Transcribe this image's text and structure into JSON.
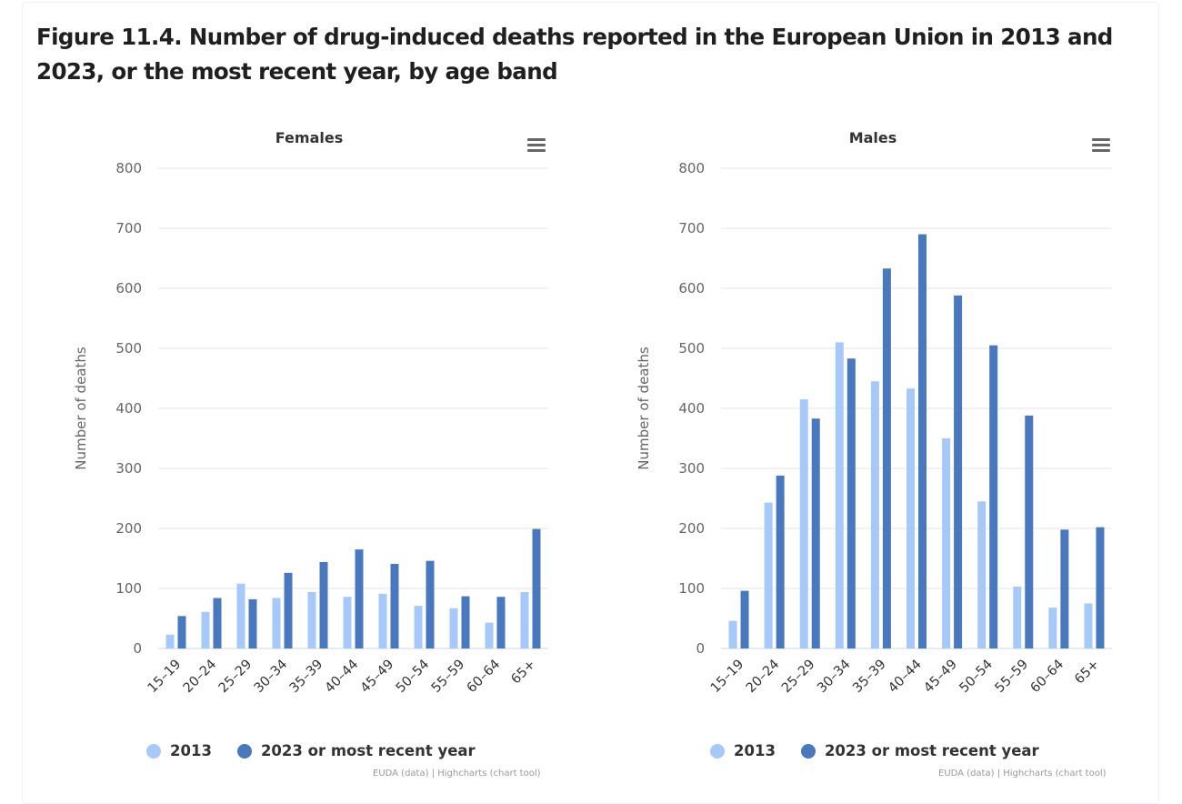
{
  "figure_title": "Figure 11.4. Number of drug-induced deaths reported in the European Union in 2013 and 2023, or the most recent year, by age band",
  "colors": {
    "series_2013": "#a6c9fa",
    "series_2023": "#4a78be",
    "grid": "#e6e6e6"
  },
  "credits": "EUDA (data) | Highcharts (chart tool)",
  "menu_icon": "hamburger-menu-icon",
  "chart_data": [
    {
      "type": "bar",
      "title": "Females",
      "xlabel": "",
      "ylabel": "Number of deaths",
      "ylim": [
        0,
        800
      ],
      "yticks": [
        0,
        100,
        200,
        300,
        400,
        500,
        600,
        700,
        800
      ],
      "grid": true,
      "legend_position": "bottom-left",
      "categories": [
        "15–19",
        "20–24",
        "25–29",
        "30–34",
        "35–39",
        "40–44",
        "45–49",
        "50–54",
        "55–59",
        "60–64",
        "65+"
      ],
      "series": [
        {
          "name": "2013",
          "values": [
            23,
            61,
            108,
            84,
            94,
            86,
            91,
            71,
            67,
            43,
            94
          ]
        },
        {
          "name": "2023 or most recent year",
          "values": [
            54,
            84,
            82,
            126,
            144,
            165,
            141,
            146,
            87,
            86,
            199
          ]
        }
      ]
    },
    {
      "type": "bar",
      "title": "Males",
      "xlabel": "",
      "ylabel": "Number of deaths",
      "ylim": [
        0,
        800
      ],
      "yticks": [
        0,
        100,
        200,
        300,
        400,
        500,
        600,
        700,
        800
      ],
      "grid": true,
      "legend_position": "bottom-left",
      "categories": [
        "15–19",
        "20–24",
        "25–29",
        "30–34",
        "35–39",
        "40–44",
        "45–49",
        "50–54",
        "55–59",
        "60–64",
        "65+"
      ],
      "series": [
        {
          "name": "2013",
          "values": [
            46,
            243,
            415,
            510,
            445,
            433,
            350,
            245,
            103,
            68,
            75
          ]
        },
        {
          "name": "2023 or most recent year",
          "values": [
            96,
            288,
            383,
            483,
            633,
            690,
            588,
            505,
            388,
            198,
            202
          ]
        }
      ]
    }
  ]
}
